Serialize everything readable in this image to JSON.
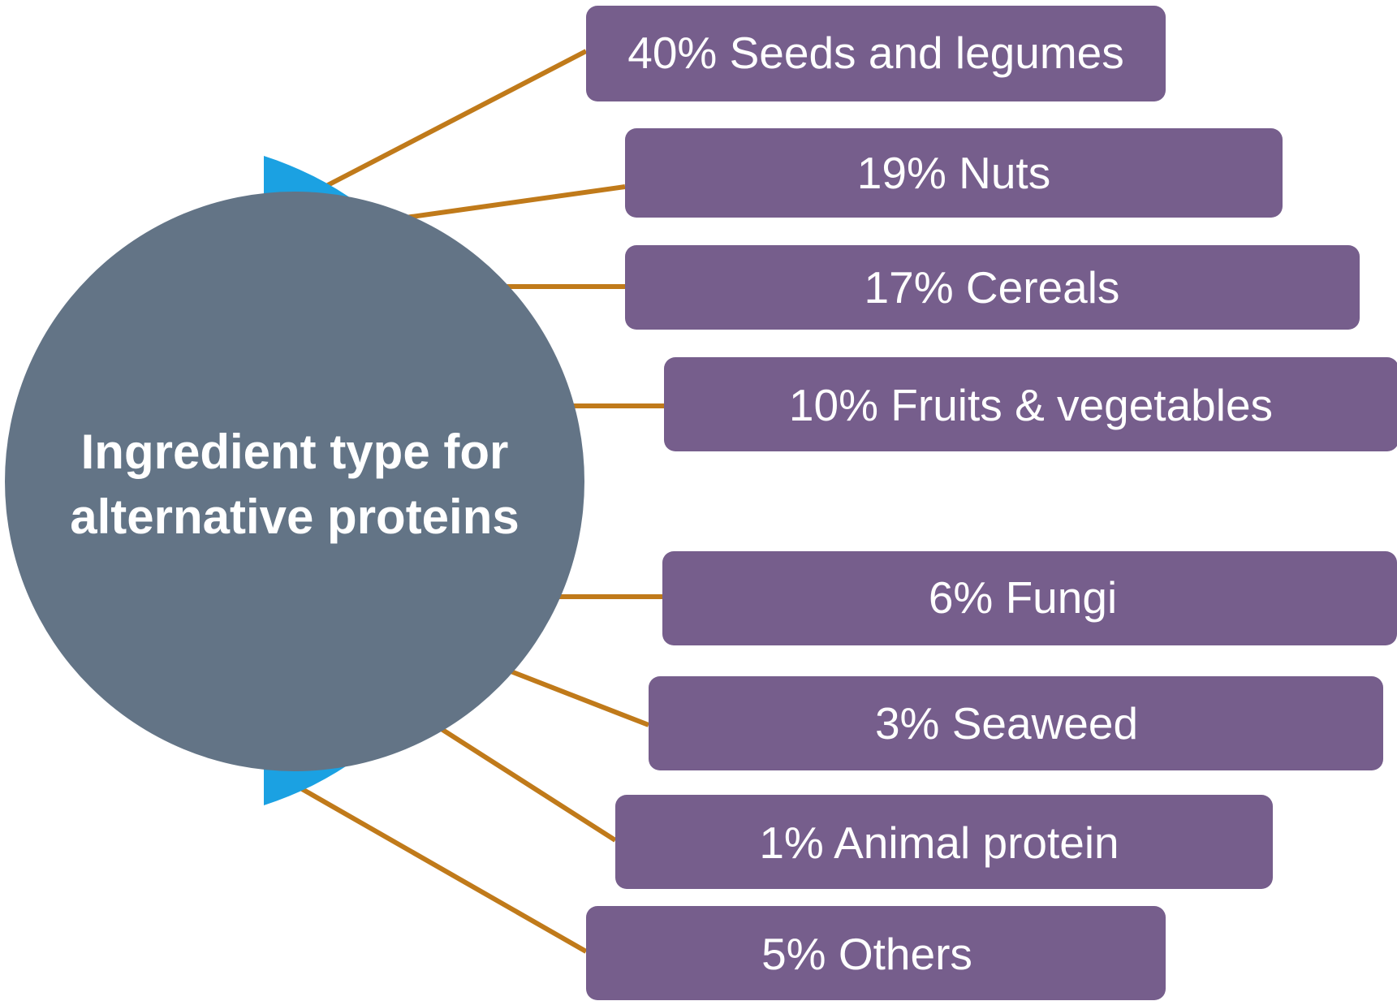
{
  "center": {
    "title_line1": "Ingredient type for",
    "title_line2": "alternative proteins"
  },
  "items": [
    {
      "label": "40% Seeds and legumes",
      "value": 40,
      "category": "Seeds and legumes"
    },
    {
      "label": "19% Nuts",
      "value": 19,
      "category": "Nuts"
    },
    {
      "label": "17% Cereals",
      "value": 17,
      "category": "Cereals"
    },
    {
      "label": "10% Fruits & vegetables",
      "value": 10,
      "category": "Fruits & vegetables"
    },
    {
      "label": "6% Fungi",
      "value": 6,
      "category": "Fungi"
    },
    {
      "label": "3% Seaweed",
      "value": 3,
      "category": "Seaweed"
    },
    {
      "label": "1% Animal protein",
      "value": 1,
      "category": "Animal protein"
    },
    {
      "label": "5% Others",
      "value": 5,
      "category": "Others"
    }
  ],
  "colors": {
    "circle": "#637486",
    "arc": "#1ba1e2",
    "box": "#765e8c",
    "connector": "#c07a1a",
    "text": "#ffffff"
  }
}
